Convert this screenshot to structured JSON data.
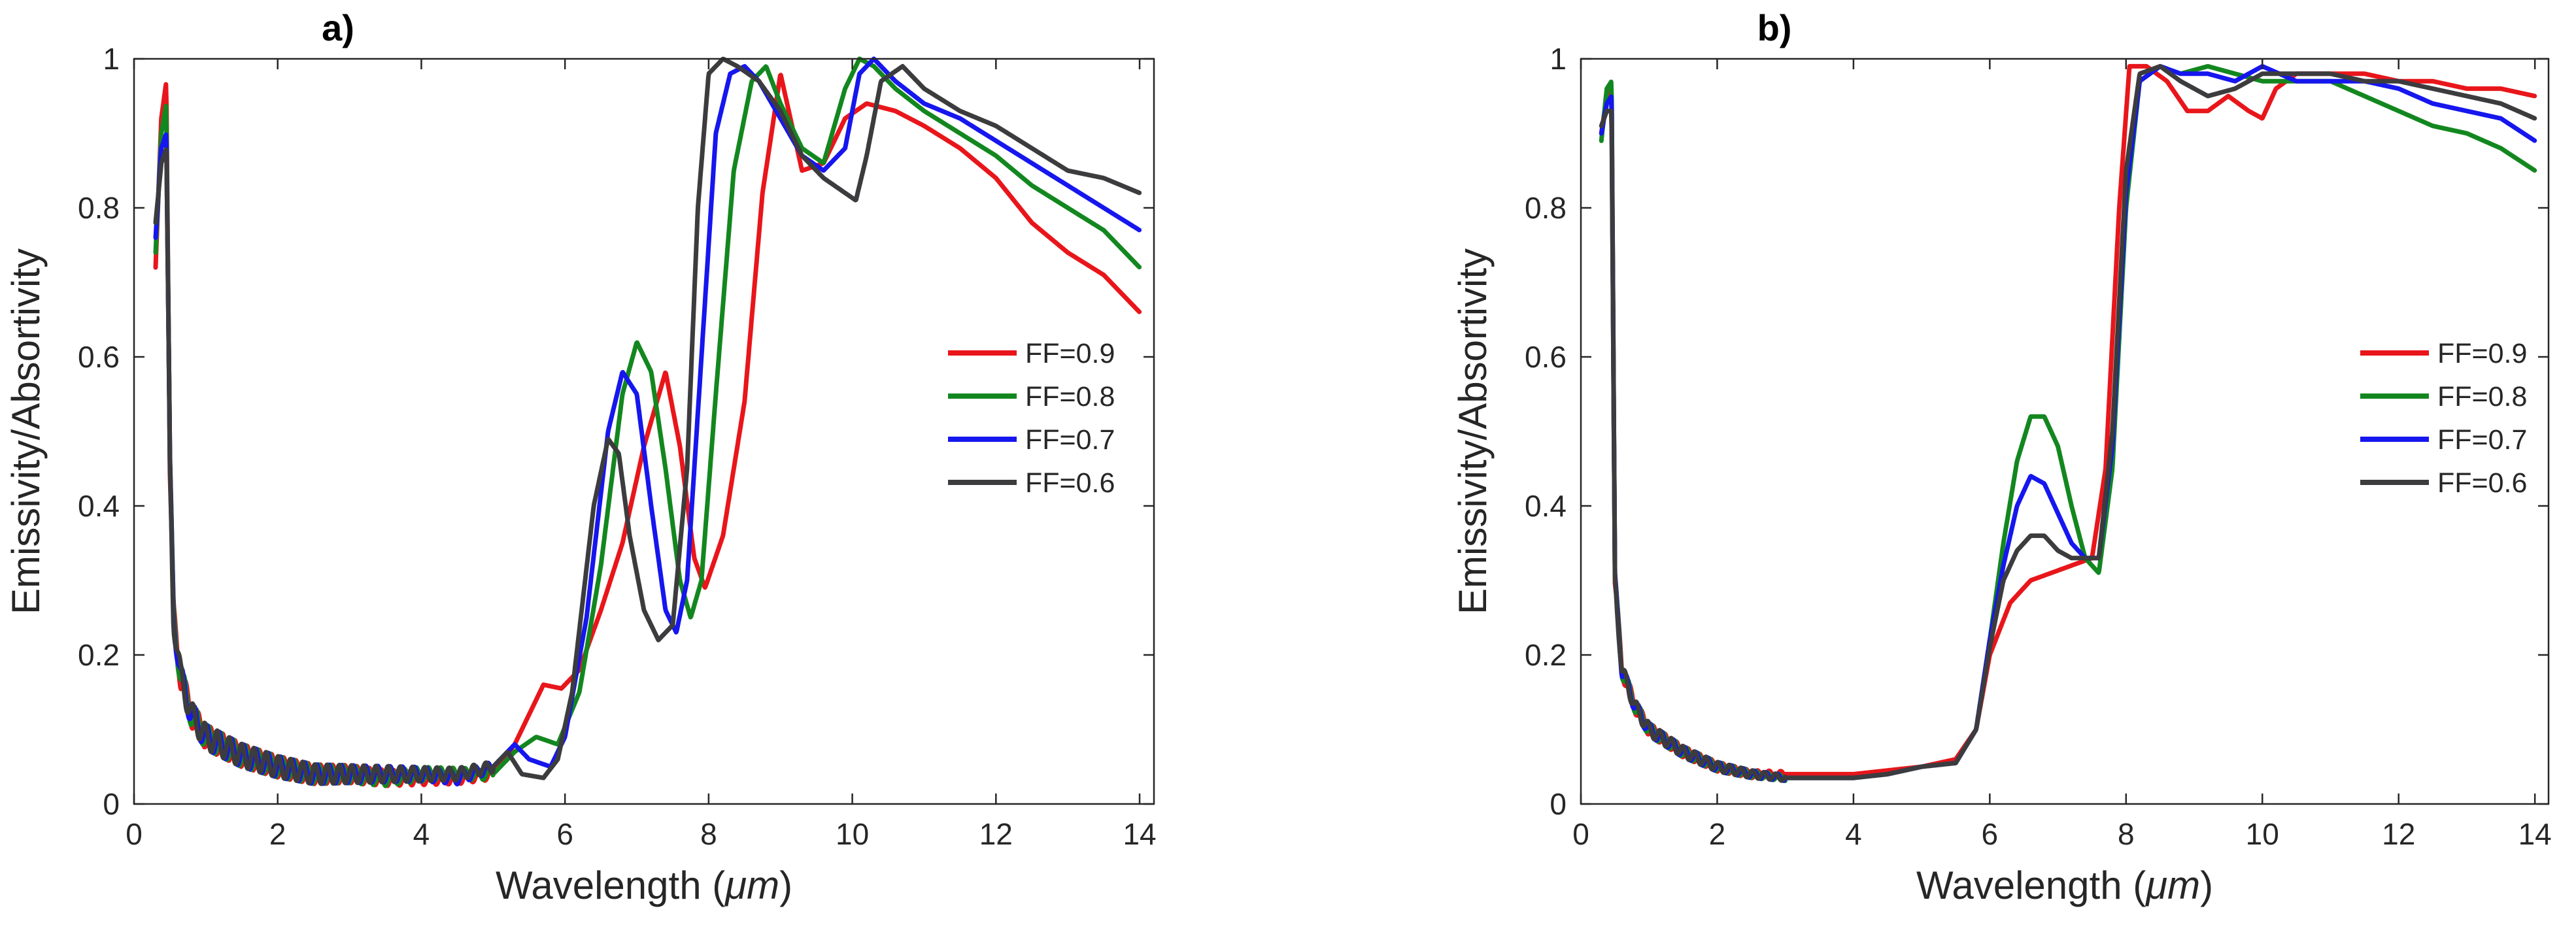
{
  "chart_data": [
    {
      "type": "line",
      "title": "a)",
      "xlabel_prefix": "Wavelength (",
      "xlabel_unit": "μm",
      "xlabel_suffix": ")",
      "ylabel": "Emissivity/Absortivity",
      "xlim": [
        0,
        14.2
      ],
      "ylim": [
        0,
        1
      ],
      "xticks": [
        0,
        2,
        4,
        6,
        8,
        10,
        12,
        14
      ],
      "yticks": [
        0,
        0.2,
        0.4,
        0.6,
        0.8,
        1
      ],
      "xtick_labels": [
        "0",
        "2",
        "4",
        "6",
        "8",
        "10",
        "12",
        "14"
      ],
      "ytick_labels": [
        "0",
        "0.2",
        "0.4",
        "0.6",
        "0.8",
        "1"
      ],
      "legend_position": "right",
      "osc": {
        "start": 0.45,
        "end": 5.0,
        "period": 0.17,
        "amp": 0.018
      },
      "series": [
        {
          "name": "FF=0.9",
          "color": "#e8161b",
          "x": [
            0.3,
            0.38,
            0.45,
            0.5,
            0.55,
            0.65,
            0.8,
            1.0,
            1.5,
            2.0,
            2.5,
            3.0,
            3.5,
            4.0,
            4.5,
            5.0,
            5.3,
            5.7,
            5.95,
            6.2,
            6.5,
            6.8,
            7.1,
            7.4,
            7.6,
            7.8,
            7.95,
            8.2,
            8.5,
            8.75,
            9.0,
            9.3,
            9.6,
            9.9,
            10.2,
            10.6,
            11.0,
            11.5,
            12.0,
            12.5,
            13.0,
            13.5,
            14.0
          ],
          "y": [
            0.72,
            0.92,
            0.97,
            0.45,
            0.25,
            0.17,
            0.12,
            0.09,
            0.065,
            0.05,
            0.04,
            0.04,
            0.035,
            0.035,
            0.035,
            0.04,
            0.08,
            0.16,
            0.155,
            0.18,
            0.26,
            0.35,
            0.48,
            0.58,
            0.48,
            0.33,
            0.29,
            0.36,
            0.54,
            0.82,
            0.98,
            0.85,
            0.86,
            0.92,
            0.94,
            0.93,
            0.91,
            0.88,
            0.84,
            0.78,
            0.74,
            0.71,
            0.66
          ]
        },
        {
          "name": "FF=0.8",
          "color": "#13871f",
          "x": [
            0.3,
            0.38,
            0.45,
            0.5,
            0.55,
            0.65,
            0.8,
            1.0,
            1.5,
            2.0,
            2.5,
            3.0,
            3.5,
            4.0,
            4.5,
            5.0,
            5.3,
            5.6,
            5.9,
            6.2,
            6.5,
            6.8,
            7.0,
            7.2,
            7.4,
            7.6,
            7.75,
            7.9,
            8.1,
            8.35,
            8.6,
            8.8,
            9.0,
            9.3,
            9.6,
            9.9,
            10.1,
            10.3,
            10.6,
            11.0,
            11.5,
            12.0,
            12.5,
            13.0,
            13.5,
            14.0
          ],
          "y": [
            0.74,
            0.9,
            0.94,
            0.45,
            0.25,
            0.17,
            0.12,
            0.09,
            0.065,
            0.05,
            0.04,
            0.04,
            0.035,
            0.04,
            0.04,
            0.04,
            0.07,
            0.09,
            0.08,
            0.15,
            0.32,
            0.55,
            0.62,
            0.58,
            0.45,
            0.3,
            0.25,
            0.3,
            0.55,
            0.85,
            0.97,
            0.99,
            0.94,
            0.88,
            0.86,
            0.96,
            1.0,
            0.99,
            0.96,
            0.93,
            0.9,
            0.87,
            0.83,
            0.8,
            0.77,
            0.72
          ]
        },
        {
          "name": "FF=0.7",
          "color": "#1616ee",
          "x": [
            0.3,
            0.38,
            0.45,
            0.5,
            0.55,
            0.65,
            0.8,
            1.0,
            1.5,
            2.0,
            2.5,
            3.0,
            3.5,
            4.0,
            4.5,
            5.0,
            5.3,
            5.5,
            5.8,
            6.0,
            6.3,
            6.6,
            6.8,
            7.0,
            7.2,
            7.4,
            7.55,
            7.7,
            7.9,
            8.1,
            8.3,
            8.5,
            8.7,
            9.0,
            9.3,
            9.6,
            9.9,
            10.1,
            10.3,
            10.6,
            11.0,
            11.5,
            12.0,
            12.5,
            13.0,
            13.5,
            14.0
          ],
          "y": [
            0.76,
            0.88,
            0.9,
            0.45,
            0.25,
            0.17,
            0.12,
            0.09,
            0.065,
            0.05,
            0.04,
            0.04,
            0.04,
            0.04,
            0.035,
            0.05,
            0.08,
            0.06,
            0.05,
            0.09,
            0.25,
            0.5,
            0.58,
            0.55,
            0.4,
            0.26,
            0.23,
            0.3,
            0.6,
            0.9,
            0.98,
            0.99,
            0.97,
            0.92,
            0.87,
            0.85,
            0.88,
            0.98,
            1.0,
            0.97,
            0.94,
            0.92,
            0.89,
            0.86,
            0.83,
            0.8,
            0.77
          ]
        },
        {
          "name": "FF=0.6",
          "color": "#3c3c3e",
          "x": [
            0.3,
            0.38,
            0.45,
            0.5,
            0.55,
            0.65,
            0.8,
            1.0,
            1.5,
            2.0,
            2.5,
            3.0,
            3.5,
            4.0,
            4.5,
            5.0,
            5.2,
            5.4,
            5.7,
            5.9,
            6.1,
            6.4,
            6.6,
            6.75,
            6.9,
            7.1,
            7.3,
            7.5,
            7.7,
            7.85,
            8.0,
            8.2,
            8.4,
            8.7,
            9.0,
            9.3,
            9.6,
            9.9,
            10.05,
            10.2,
            10.4,
            10.7,
            11.0,
            11.5,
            12.0,
            12.5,
            13.0,
            13.5,
            14.0
          ],
          "y": [
            0.78,
            0.86,
            0.88,
            0.45,
            0.25,
            0.17,
            0.12,
            0.09,
            0.065,
            0.05,
            0.04,
            0.04,
            0.04,
            0.04,
            0.04,
            0.05,
            0.07,
            0.04,
            0.035,
            0.06,
            0.15,
            0.4,
            0.49,
            0.47,
            0.36,
            0.26,
            0.22,
            0.24,
            0.45,
            0.8,
            0.98,
            1.0,
            0.99,
            0.97,
            0.93,
            0.87,
            0.84,
            0.82,
            0.81,
            0.87,
            0.97,
            0.99,
            0.96,
            0.93,
            0.91,
            0.88,
            0.85,
            0.84,
            0.82
          ]
        }
      ]
    },
    {
      "type": "line",
      "title": "b)",
      "xlabel_prefix": "Wavelength (",
      "xlabel_unit": "μm",
      "xlabel_suffix": ")",
      "ylabel": "Emissivity/Absortivity",
      "xlim": [
        0,
        14.2
      ],
      "ylim": [
        0,
        1
      ],
      "xticks": [
        0,
        2,
        4,
        6,
        8,
        10,
        12,
        14
      ],
      "yticks": [
        0,
        0.2,
        0.4,
        0.6,
        0.8,
        1
      ],
      "xtick_labels": [
        "0",
        "2",
        "4",
        "6",
        "8",
        "10",
        "12",
        "14"
      ],
      "ytick_labels": [
        "0",
        "0.2",
        "0.4",
        "0.6",
        "0.8",
        "1"
      ],
      "legend_position": "right",
      "osc": {
        "start": 0.5,
        "end": 3.0,
        "period": 0.17,
        "amp": 0.01
      },
      "series": [
        {
          "name": "FF=0.9",
          "color": "#e8161b",
          "x": [
            0.3,
            0.38,
            0.45,
            0.5,
            0.6,
            0.8,
            1.0,
            1.5,
            2.0,
            2.5,
            3.0,
            3.5,
            4.0,
            4.5,
            5.0,
            5.5,
            5.8,
            6.0,
            6.3,
            6.6,
            6.9,
            7.2,
            7.5,
            7.7,
            7.9,
            8.05,
            8.3,
            8.6,
            8.9,
            9.2,
            9.5,
            9.8,
            10.0,
            10.2,
            10.5,
            11.0,
            11.5,
            12.0,
            12.5,
            13.0,
            13.5,
            14.0
          ],
          "y": [
            0.9,
            0.95,
            0.96,
            0.3,
            0.18,
            0.13,
            0.1,
            0.07,
            0.05,
            0.04,
            0.04,
            0.04,
            0.04,
            0.045,
            0.05,
            0.06,
            0.1,
            0.2,
            0.27,
            0.3,
            0.31,
            0.32,
            0.33,
            0.45,
            0.8,
            0.99,
            0.99,
            0.97,
            0.93,
            0.93,
            0.95,
            0.93,
            0.92,
            0.96,
            0.98,
            0.98,
            0.98,
            0.97,
            0.97,
            0.96,
            0.96,
            0.95
          ]
        },
        {
          "name": "FF=0.8",
          "color": "#13871f",
          "x": [
            0.3,
            0.38,
            0.45,
            0.5,
            0.6,
            0.8,
            1.0,
            1.5,
            2.0,
            2.5,
            3.0,
            3.5,
            4.0,
            4.5,
            5.0,
            5.5,
            5.8,
            6.0,
            6.2,
            6.4,
            6.6,
            6.8,
            7.0,
            7.2,
            7.4,
            7.6,
            7.8,
            8.0,
            8.2,
            8.5,
            8.8,
            9.2,
            9.6,
            10.0,
            10.5,
            11.0,
            11.5,
            12.0,
            12.5,
            13.0,
            13.5,
            14.0
          ],
          "y": [
            0.89,
            0.96,
            0.97,
            0.3,
            0.18,
            0.13,
            0.1,
            0.07,
            0.05,
            0.04,
            0.035,
            0.035,
            0.035,
            0.04,
            0.05,
            0.055,
            0.1,
            0.22,
            0.35,
            0.46,
            0.52,
            0.52,
            0.48,
            0.4,
            0.33,
            0.31,
            0.45,
            0.8,
            0.97,
            0.99,
            0.98,
            0.99,
            0.98,
            0.97,
            0.97,
            0.97,
            0.95,
            0.93,
            0.91,
            0.9,
            0.88,
            0.85
          ]
        },
        {
          "name": "FF=0.7",
          "color": "#1616ee",
          "x": [
            0.3,
            0.38,
            0.45,
            0.5,
            0.6,
            0.8,
            1.0,
            1.5,
            2.0,
            2.5,
            3.0,
            3.5,
            4.0,
            4.5,
            5.0,
            5.5,
            5.8,
            6.0,
            6.2,
            6.4,
            6.6,
            6.8,
            7.0,
            7.2,
            7.4,
            7.6,
            7.8,
            8.0,
            8.2,
            8.5,
            8.8,
            9.2,
            9.6,
            10.0,
            10.5,
            11.0,
            11.5,
            12.0,
            12.5,
            13.0,
            13.5,
            14.0
          ],
          "y": [
            0.9,
            0.94,
            0.95,
            0.3,
            0.18,
            0.13,
            0.1,
            0.07,
            0.05,
            0.04,
            0.035,
            0.035,
            0.035,
            0.04,
            0.05,
            0.055,
            0.1,
            0.22,
            0.32,
            0.4,
            0.44,
            0.43,
            0.39,
            0.35,
            0.33,
            0.33,
            0.48,
            0.82,
            0.97,
            0.99,
            0.98,
            0.98,
            0.97,
            0.99,
            0.97,
            0.97,
            0.97,
            0.96,
            0.94,
            0.93,
            0.92,
            0.89
          ]
        },
        {
          "name": "FF=0.6",
          "color": "#3c3c3e",
          "x": [
            0.3,
            0.38,
            0.45,
            0.5,
            0.6,
            0.8,
            1.0,
            1.5,
            2.0,
            2.5,
            3.0,
            3.5,
            4.0,
            4.5,
            5.0,
            5.5,
            5.8,
            6.0,
            6.2,
            6.4,
            6.6,
            6.8,
            7.0,
            7.2,
            7.4,
            7.6,
            7.8,
            8.0,
            8.2,
            8.5,
            8.8,
            9.2,
            9.6,
            10.0,
            10.5,
            11.0,
            11.5,
            12.0,
            12.5,
            13.0,
            13.5,
            14.0
          ],
          "y": [
            0.91,
            0.93,
            0.93,
            0.3,
            0.18,
            0.13,
            0.1,
            0.07,
            0.05,
            0.04,
            0.035,
            0.035,
            0.035,
            0.04,
            0.05,
            0.055,
            0.1,
            0.21,
            0.3,
            0.34,
            0.36,
            0.36,
            0.34,
            0.33,
            0.33,
            0.33,
            0.5,
            0.85,
            0.98,
            0.99,
            0.97,
            0.95,
            0.96,
            0.98,
            0.98,
            0.98,
            0.97,
            0.97,
            0.96,
            0.95,
            0.94,
            0.92
          ]
        }
      ]
    }
  ]
}
